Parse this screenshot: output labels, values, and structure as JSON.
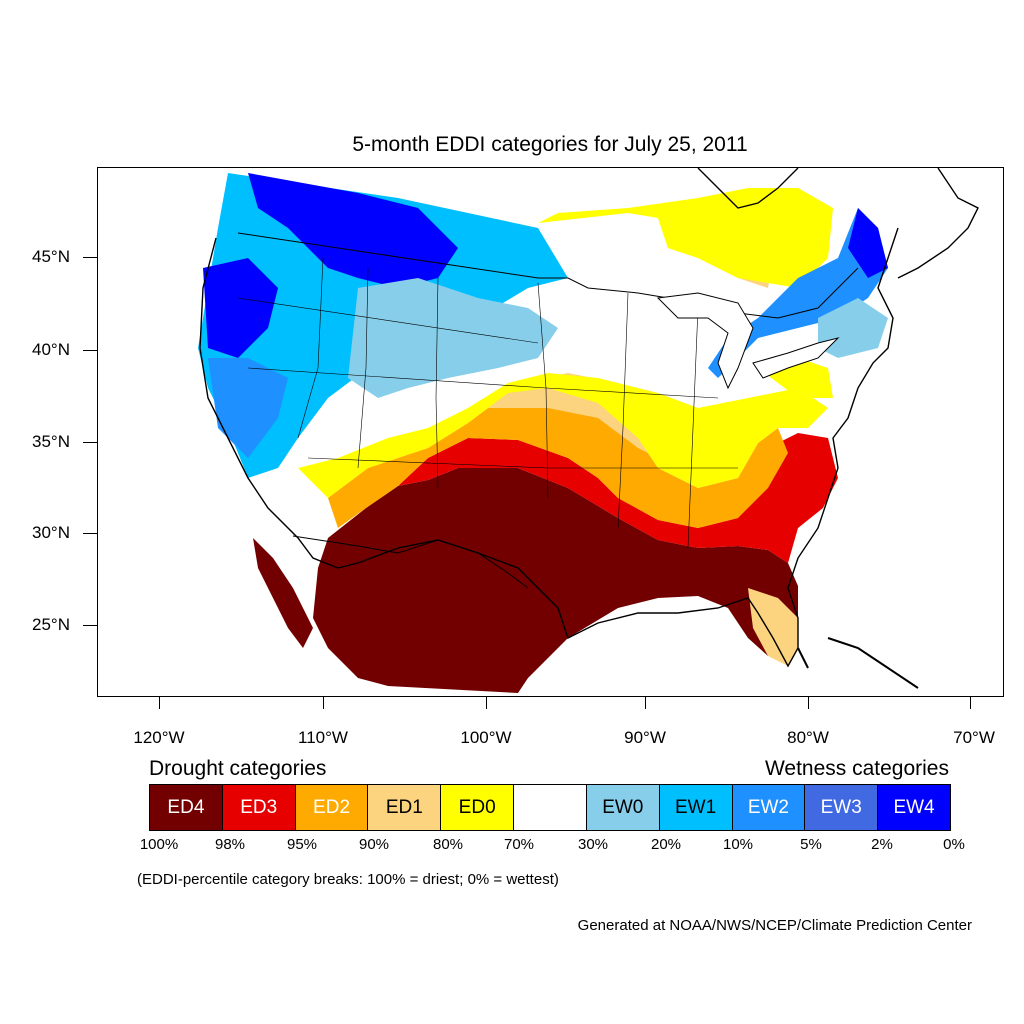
{
  "title": "5-month EDDI categories for July 25, 2011",
  "map": {
    "lon_ticks": [
      "120°W",
      "110°W",
      "100°W",
      "90°W",
      "80°W",
      "70°W"
    ],
    "lat_ticks": [
      "45°N",
      "40°N",
      "35°N",
      "30°N",
      "25°N"
    ]
  },
  "legend": {
    "drought_heading": "Drought categories",
    "wetness_heading": "Wetness categories",
    "categories": [
      {
        "label": "ED4",
        "color": "#730000",
        "text_color": "#ffffff"
      },
      {
        "label": "ED3",
        "color": "#e60000",
        "text_color": "#ffffff"
      },
      {
        "label": "ED2",
        "color": "#ffaa00",
        "text_color": "#ffffff"
      },
      {
        "label": "ED1",
        "color": "#fcd37f",
        "text_color": "#000000"
      },
      {
        "label": "ED0",
        "color": "#ffff00",
        "text_color": "#000000"
      },
      {
        "label": "",
        "color": "#ffffff",
        "text_color": "#000000"
      },
      {
        "label": "EW0",
        "color": "#87ceeb",
        "text_color": "#000000"
      },
      {
        "label": "EW1",
        "color": "#00bfff",
        "text_color": "#000000"
      },
      {
        "label": "EW2",
        "color": "#1e90ff",
        "text_color": "#ffffff"
      },
      {
        "label": "EW3",
        "color": "#4169e1",
        "text_color": "#ffffff"
      },
      {
        "label": "EW4",
        "color": "#0000ff",
        "text_color": "#ffffff"
      }
    ],
    "breaks": [
      "100%",
      "98%",
      "95%",
      "90%",
      "80%",
      "70%",
      "30%",
      "20%",
      "10%",
      "5%",
      "2%",
      "0%"
    ]
  },
  "note": "(EDDI-percentile category breaks: 100% = driest; 0% = wettest)",
  "credit": "Generated at NOAA/NWS/NCEP/Climate Prediction Center"
}
